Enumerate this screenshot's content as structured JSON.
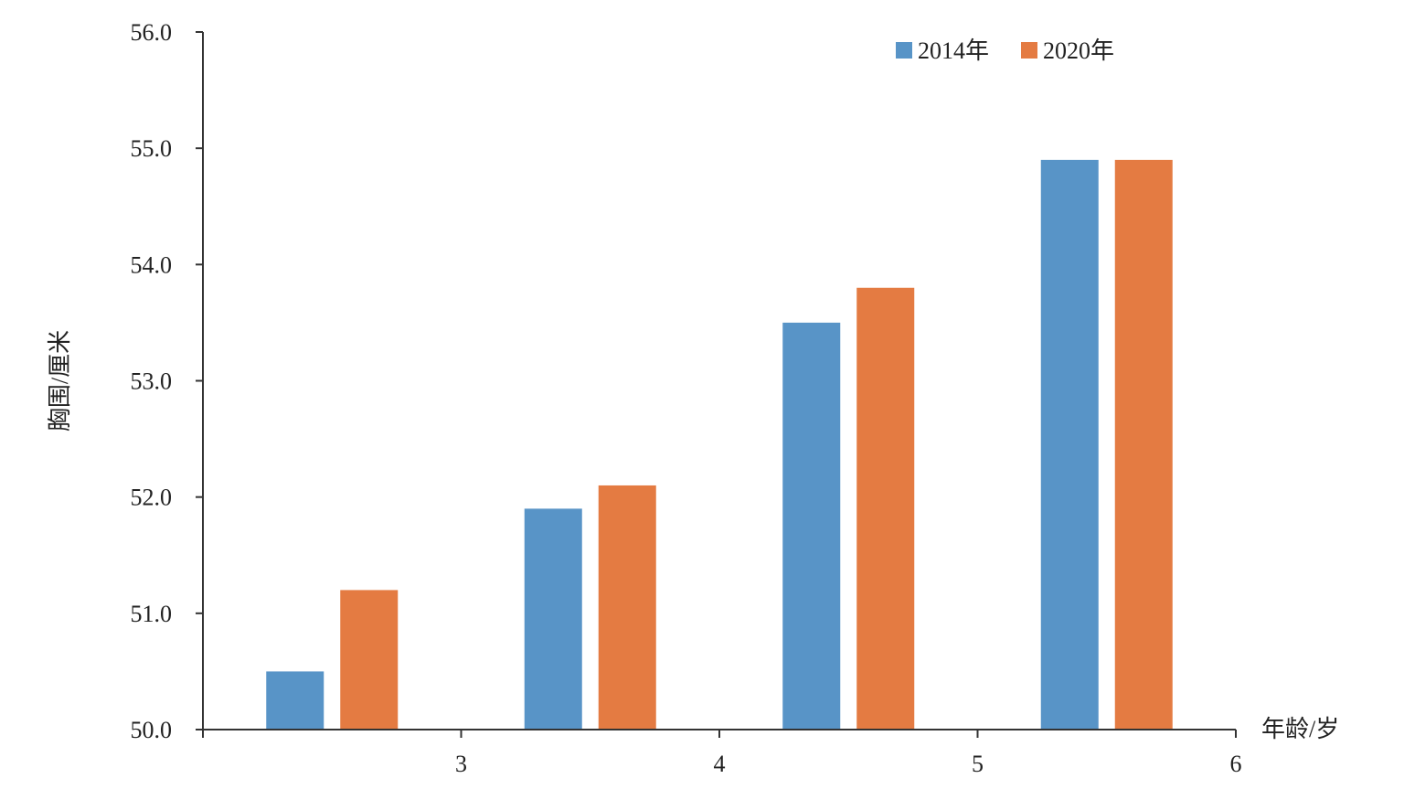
{
  "chart_data": {
    "type": "bar",
    "title": "",
    "xlabel": "年龄/岁",
    "ylabel": "胸围/厘米",
    "ylim": [
      50.0,
      56.0
    ],
    "yticks": [
      "50.0",
      "51.0",
      "52.0",
      "53.0",
      "54.0",
      "55.0",
      "56.0"
    ],
    "xticks": [
      "3",
      "4",
      "5",
      "6"
    ],
    "categories": [
      "3",
      "4",
      "5",
      "6"
    ],
    "series": [
      {
        "name": "2014年",
        "color": "#5894C7",
        "values": [
          50.5,
          51.9,
          53.5,
          54.9
        ]
      },
      {
        "name": "2020年",
        "color": "#E47B42",
        "values": [
          51.2,
          52.1,
          53.8,
          54.9
        ]
      }
    ],
    "legend_position": "top-right",
    "grid": false
  }
}
